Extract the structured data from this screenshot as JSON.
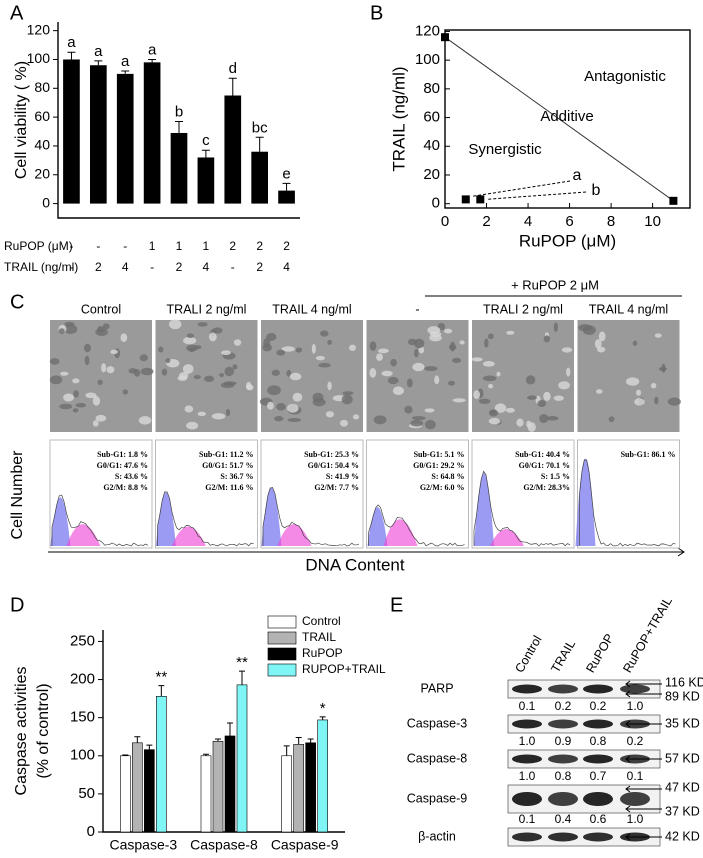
{
  "chart_data": [
    {
      "type": "bar",
      "panel": "A",
      "ylabel": "Cell viability ( %)",
      "values": [
        100,
        96,
        90,
        98,
        49,
        32,
        75,
        36,
        9
      ],
      "errors": [
        5,
        3,
        2,
        2,
        8,
        5,
        12,
        10,
        5
      ],
      "annotations": [
        "a",
        "a",
        "a",
        "a",
        "b",
        "c",
        "d",
        "bc",
        "e"
      ],
      "conditions": [
        {
          "label": "RuPOP (μM)",
          "values": [
            "-",
            "-",
            "-",
            "1",
            "1",
            "1",
            "2",
            "2",
            "2"
          ]
        },
        {
          "label": "TRAIL (ng/ml)",
          "values": [
            "-",
            "2",
            "4",
            "-",
            "2",
            "4",
            "-",
            "2",
            "4"
          ]
        }
      ],
      "color": "#000000",
      "ylim": [
        -10,
        126
      ],
      "yticks": [
        0,
        20,
        40,
        60,
        80,
        100,
        120
      ]
    },
    {
      "type": "scatter",
      "panel": "B",
      "xlabel": "RuPOP (μM)",
      "ylabel": "TRAIL (ng/ml)",
      "x": [
        0,
        1,
        1.7,
        11
      ],
      "values": [
        116,
        3,
        3,
        2
      ],
      "color": "#000000",
      "annotations": [
        "Antagonistic",
        "Additive",
        "Synergistic",
        "a",
        "b"
      ],
      "xlim": [
        0,
        11.8
      ],
      "ylim": [
        -3,
        121
      ],
      "xticks": [
        0,
        2,
        4,
        6,
        8,
        10
      ],
      "yticks": [
        0,
        20,
        40,
        60,
        80,
        100,
        120
      ]
    },
    {
      "type": "grouped_bar",
      "panel": "D",
      "ylabel": [
        "Caspase activities",
        "(% of control)"
      ],
      "categories": [
        "Caspase-3",
        "Caspase-8",
        "Caspase-9"
      ],
      "series": [
        {
          "name": "Control",
          "color": "#ffffff",
          "values": [
            100,
            100,
            100
          ],
          "errors": [
            1,
            2,
            13
          ]
        },
        {
          "name": "TRAIL",
          "color": "#b3b3b3",
          "values": [
            117,
            119,
            115
          ],
          "errors": [
            8,
            3,
            9
          ]
        },
        {
          "name": "RuPOP",
          "color": "#000000",
          "values": [
            108,
            126,
            117
          ],
          "errors": [
            6,
            17,
            5
          ]
        },
        {
          "name": "RUPOP+TRAIL",
          "color": "#7ff5f5",
          "values": [
            178,
            193,
            147
          ],
          "errors": [
            14,
            18,
            4
          ],
          "annotations": [
            "**",
            "**",
            "*"
          ]
        }
      ],
      "ylim": [
        0,
        265
      ],
      "yticks": [
        0,
        50,
        100,
        150,
        200,
        250
      ]
    }
  ],
  "panel_c": {
    "panel": "C",
    "group_label": "+ RuPOP 2 μM",
    "ylabel": "Cell Number",
    "xlabel": "DNA Content",
    "columns": [
      {
        "label": "Control",
        "stats": [
          "Sub-G1: 1.8 %",
          "G0/G1: 47.6 %",
          "S: 43.6 %",
          "G2/M: 8.8 %"
        ]
      },
      {
        "label": "TRALI 2 ng/ml",
        "stats": [
          "Sub-G1: 11.2 %",
          "G0/G1: 51.7 %",
          "S: 36.7 %",
          "G2/M: 11.6 %"
        ]
      },
      {
        "label": "TRAIL 4 ng/ml",
        "stats": [
          "Sub-G1: 25.3 %",
          "G0/G1: 50.4 %",
          "S: 41.9 %",
          "G2/M: 7.7 %"
        ]
      },
      {
        "label": "-",
        "stats": [
          "Sub-G1: 5.1 %",
          "G0/G1: 29.2 %",
          "S: 64.8 %",
          "G2/M: 6.0 %"
        ]
      },
      {
        "label": "TRALI 2 ng/ml",
        "stats": [
          "Sub-G1: 40.4 %",
          "G0/G1: 70.1 %",
          "S: 1.5 %",
          "G2/M: 28.3%"
        ]
      },
      {
        "label": "TRAIL 4 ng/ml",
        "stats": [
          "Sub-G1: 86.1 %"
        ]
      }
    ]
  },
  "panel_e": {
    "panel": "E",
    "lanes": [
      "Control",
      "TRAIL",
      "RuPOP",
      "RuPOP+TRAIL"
    ],
    "rows": [
      {
        "label": "PARP",
        "ratios": [
          "0.1",
          "0.2",
          "0.2",
          "1.0"
        ],
        "markers": [
          "116 KD",
          "89 KD"
        ]
      },
      {
        "label": "Caspase-3",
        "ratios": [
          "1.0",
          "0.9",
          "0.8",
          "0.2"
        ],
        "markers": [
          "35 KD"
        ]
      },
      {
        "label": "Caspase-8",
        "ratios": [
          "1.0",
          "0.8",
          "0.7",
          "0.1"
        ],
        "markers": [
          "57 KD"
        ]
      },
      {
        "label": "Caspase-9",
        "ratios": [
          "0.1",
          "0.4",
          "0.6",
          "1.0"
        ],
        "markers": [
          "47 KD",
          "37 KD"
        ]
      },
      {
        "label": "β-actin",
        "markers": [
          "42 KD"
        ]
      }
    ]
  }
}
